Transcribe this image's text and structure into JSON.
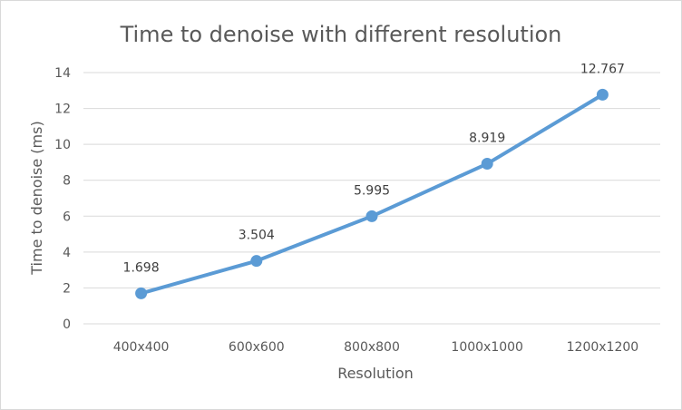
{
  "chart_data": {
    "type": "line",
    "title": "Time to denoise with different resolution",
    "xlabel": "Resolution",
    "ylabel": "Time to denoise (ms)",
    "categories": [
      "400x400",
      "600x600",
      "800x800",
      "1000x1000",
      "1200x1200"
    ],
    "series": [
      {
        "values": [
          1.698,
          3.504,
          5.995,
          8.919,
          12.767
        ],
        "labels": [
          "1.698",
          "3.504",
          "5.995",
          "8.919",
          "12.767"
        ],
        "color": "#5b9bd5"
      }
    ],
    "ylim": [
      0,
      14
    ],
    "yticks": [
      "0",
      "2",
      "4",
      "6",
      "8",
      "10",
      "12",
      "14"
    ],
    "grid": true,
    "legend": "none",
    "colors": {
      "gridline": "#d9d9d9",
      "text": "#595959",
      "border": "#d9d9d9"
    }
  }
}
